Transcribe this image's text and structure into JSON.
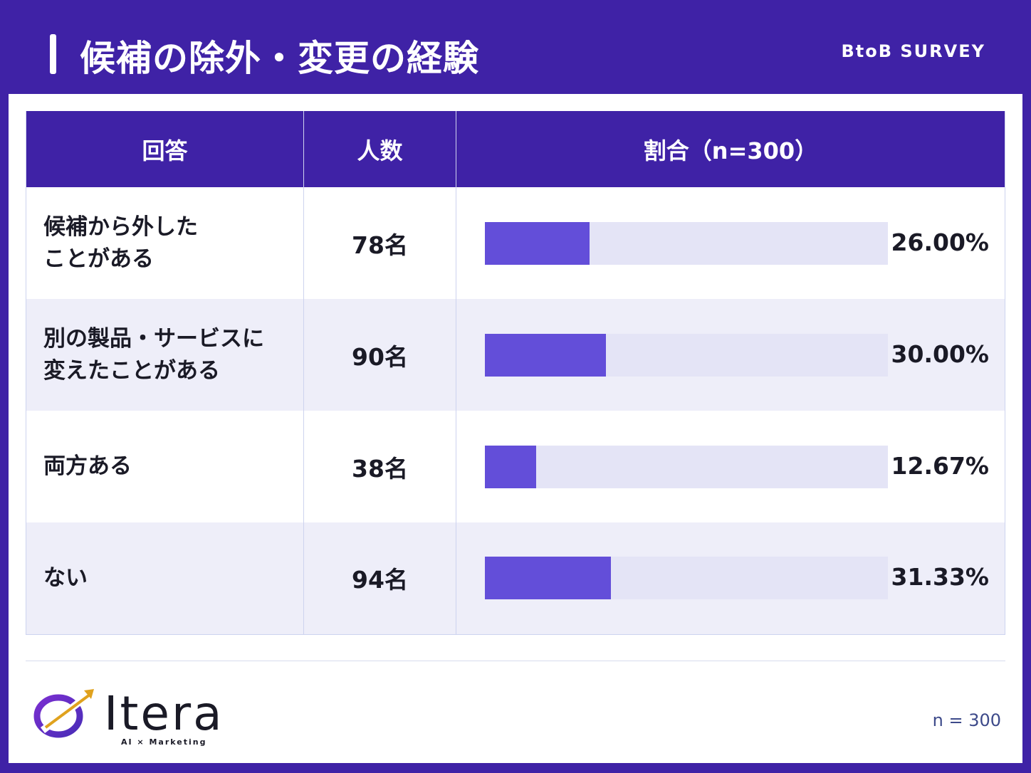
{
  "header": {
    "title": "候補の除外・変更の経験",
    "tag": "BtoB SURVEY"
  },
  "table": {
    "headers": [
      "回答",
      "人数",
      "割合（n=300）"
    ]
  },
  "chart_data": {
    "type": "bar",
    "orientation": "horizontal",
    "categories": [
      "候補から外した\nことがある",
      "別の製品・サービスに\n変えたことがある",
      "両方ある",
      "ない"
    ],
    "counts": [
      "78名",
      "90名",
      "38名",
      "94名"
    ],
    "values": [
      26.0,
      30.0,
      12.67,
      31.33
    ],
    "value_labels": [
      "26.00%",
      "30.00%",
      "12.67%",
      "31.33%"
    ],
    "xlim": [
      0,
      100
    ]
  },
  "footer": {
    "logo_text": "Itera",
    "logo_sub": "AI × Marketing",
    "n_label": "n = 300"
  },
  "colors": {
    "brand": "#3f22a6",
    "bar": "#634ed9",
    "track": "#e4e4f6",
    "alt_row": "#eeeef9"
  }
}
